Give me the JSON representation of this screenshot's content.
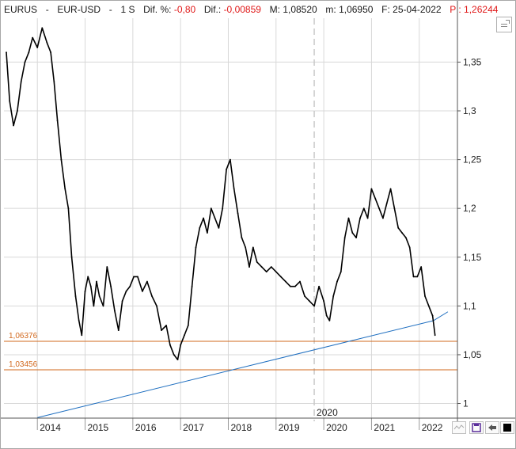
{
  "header": {
    "symbol": "EURUS",
    "sep1": "-",
    "pair": "EUR-USD",
    "sep2": "-",
    "period": "1 S",
    "dif_pct_label": "Dif. %:",
    "dif_pct_value": "-0,80",
    "dif_label": "Dif.:",
    "dif_value": "-0,00859",
    "max_label": "M:",
    "max_value": "1,08520",
    "min_label": "m:",
    "min_value": "1,06950",
    "date_label": "F: 25-04-2022",
    "price_label": "P :",
    "price_value": "1,26244"
  },
  "colors": {
    "price_line": "#000000",
    "trendline": "#1f6fc0",
    "support_lines": "#d2691e",
    "negative_text": "#e01818",
    "grid": "#d8d8d8"
  },
  "icons": [
    "corner-expand-icon",
    "chart-style-icon",
    "save-icon",
    "cursor-icon",
    "fill-color-icon"
  ],
  "chart_data": {
    "type": "line",
    "x_unit": "year",
    "x_ticks": [
      "2014",
      "2015",
      "2016",
      "2017",
      "2018",
      "2019",
      "2020",
      "2021",
      "2022"
    ],
    "x_tick_values": [
      2014.0,
      2015.0,
      2016.0,
      2017.0,
      2018.0,
      2019.0,
      2020.0,
      2021.0,
      2022.0
    ],
    "y_ticks": [
      "1",
      "1,05",
      "1,1",
      "1,15",
      "1,2",
      "1,25",
      "1,3",
      "1,35"
    ],
    "y_tick_values": [
      1.0,
      1.05,
      1.1,
      1.15,
      1.2,
      1.25,
      1.3,
      1.35
    ],
    "xlim": [
      2013.3,
      2022.8
    ],
    "ylim": [
      0.985,
      1.395
    ],
    "grid": true,
    "marker_label": "2020",
    "marker_x": 2019.8,
    "series": [
      {
        "x": [
          2013.35,
          2013.42,
          2013.5,
          2013.58,
          2013.66,
          2013.74,
          2013.82,
          2013.9,
          2014.0,
          2014.1,
          2014.2,
          2014.28,
          2014.35,
          2014.42,
          2014.5,
          2014.58,
          2014.65,
          2014.72,
          2014.8,
          2014.87,
          2014.93,
          2015.0,
          2015.06,
          2015.12,
          2015.18,
          2015.24,
          2015.3,
          2015.38,
          2015.46,
          2015.54,
          2015.62,
          2015.7,
          2015.78,
          2015.86,
          2015.94,
          2016.02,
          2016.1,
          2016.2,
          2016.3,
          2016.4,
          2016.5,
          2016.6,
          2016.7,
          2016.78,
          2016.86,
          2016.94,
          2017.0,
          2017.08,
          2017.16,
          2017.24,
          2017.32,
          2017.4,
          2017.48,
          2017.56,
          2017.64,
          2017.72,
          2017.8,
          2017.88,
          2017.96,
          2018.04,
          2018.12,
          2018.2,
          2018.28,
          2018.36,
          2018.44,
          2018.52,
          2018.6,
          2018.7,
          2018.8,
          2018.9,
          2019.0,
          2019.1,
          2019.2,
          2019.3,
          2019.4,
          2019.5,
          2019.6,
          2019.7,
          2019.8,
          2019.9,
          2020.0,
          2020.06,
          2020.12,
          2020.2,
          2020.28,
          2020.36,
          2020.44,
          2020.52,
          2020.6,
          2020.68,
          2020.76,
          2020.84,
          2020.92,
          2021.0,
          2021.08,
          2021.16,
          2021.24,
          2021.32,
          2021.4,
          2021.48,
          2021.56,
          2021.64,
          2021.72,
          2021.8,
          2021.88,
          2021.96,
          2022.04,
          2022.12,
          2022.2,
          2022.28,
          2022.33
        ],
        "y": [
          1.36,
          1.31,
          1.285,
          1.3,
          1.33,
          1.35,
          1.36,
          1.375,
          1.365,
          1.385,
          1.37,
          1.36,
          1.33,
          1.29,
          1.25,
          1.22,
          1.2,
          1.15,
          1.11,
          1.085,
          1.07,
          1.115,
          1.13,
          1.12,
          1.1,
          1.125,
          1.11,
          1.1,
          1.14,
          1.12,
          1.095,
          1.075,
          1.105,
          1.115,
          1.12,
          1.13,
          1.13,
          1.115,
          1.125,
          1.11,
          1.1,
          1.075,
          1.08,
          1.06,
          1.05,
          1.045,
          1.06,
          1.07,
          1.08,
          1.12,
          1.16,
          1.18,
          1.19,
          1.175,
          1.2,
          1.19,
          1.18,
          1.2,
          1.24,
          1.25,
          1.22,
          1.195,
          1.17,
          1.16,
          1.14,
          1.16,
          1.145,
          1.14,
          1.135,
          1.14,
          1.135,
          1.13,
          1.125,
          1.12,
          1.12,
          1.125,
          1.11,
          1.105,
          1.1,
          1.12,
          1.105,
          1.09,
          1.085,
          1.11,
          1.125,
          1.135,
          1.17,
          1.19,
          1.175,
          1.17,
          1.19,
          1.2,
          1.19,
          1.22,
          1.21,
          1.2,
          1.19,
          1.205,
          1.22,
          1.2,
          1.18,
          1.175,
          1.17,
          1.16,
          1.13,
          1.13,
          1.14,
          1.11,
          1.1,
          1.09,
          1.07
        ]
      }
    ],
    "horizontal_lines": [
      {
        "label": "1,06376",
        "value": 1.06376
      },
      {
        "label": "1,03456",
        "value": 1.03456
      }
    ],
    "trendline": {
      "x": [
        2014.0,
        2022.3
      ],
      "y": [
        0.9855,
        1.085
      ]
    },
    "trendline_extension": {
      "x": [
        2022.3,
        2022.6
      ],
      "y": [
        1.085,
        1.094
      ]
    }
  }
}
